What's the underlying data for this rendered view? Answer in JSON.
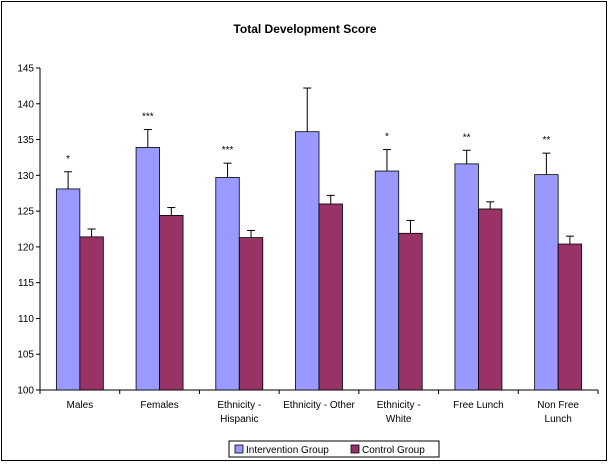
{
  "chart_data": {
    "type": "bar",
    "title": "Total Development Score",
    "xlabel": "",
    "ylabel": "",
    "ylim": [
      100,
      145
    ],
    "yticks": [
      100,
      105,
      110,
      115,
      120,
      125,
      130,
      135,
      140,
      145
    ],
    "categories": [
      [
        "Males"
      ],
      [
        "Females"
      ],
      [
        "Ethnicity -",
        "Hispanic"
      ],
      [
        "Ethnicity - Other"
      ],
      [
        "Ethnicity -",
        "White"
      ],
      [
        "Free Lunch"
      ],
      [
        "Non Free",
        "Lunch"
      ]
    ],
    "series": [
      {
        "name": "Intervention Group",
        "color": "#9999ff",
        "values": [
          128.1,
          133.9,
          129.7,
          136.1,
          130.6,
          131.6,
          130.1
        ],
        "error_upper": [
          2.4,
          2.5,
          2.0,
          6.1,
          3.0,
          1.9,
          3.0
        ]
      },
      {
        "name": "Control Group",
        "color": "#993366",
        "values": [
          121.4,
          124.4,
          121.3,
          126.0,
          121.9,
          125.3,
          120.4
        ],
        "error_upper": [
          1.1,
          1.1,
          1.0,
          1.2,
          1.8,
          1.0,
          1.1
        ]
      }
    ],
    "significance": [
      "*",
      "***",
      "***",
      "",
      "*",
      "**",
      "**"
    ],
    "grid": false,
    "legend_position": "bottom"
  }
}
